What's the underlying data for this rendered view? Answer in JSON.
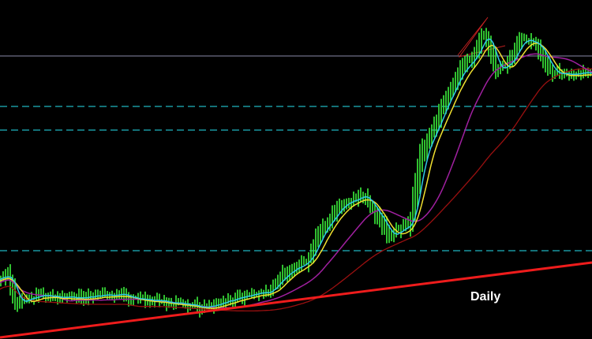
{
  "label": "Daily"
}
